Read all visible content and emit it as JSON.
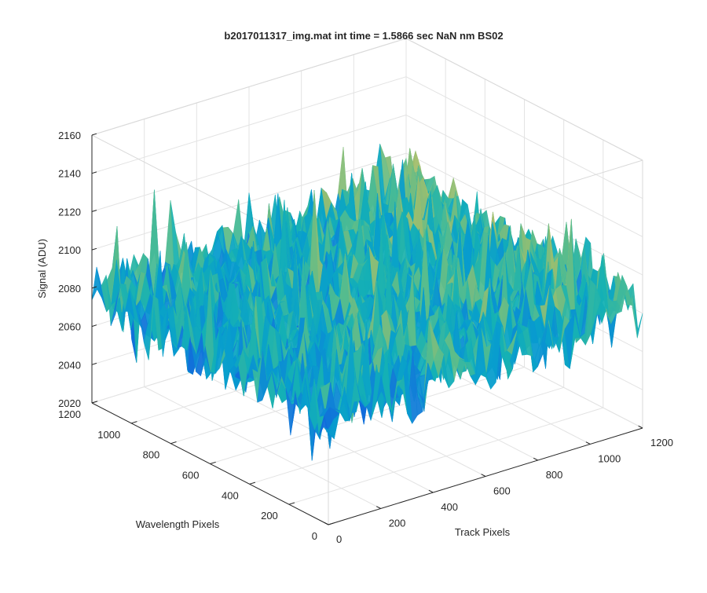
{
  "chart_data": {
    "type": "surface",
    "title": "b2017011317_img.mat int time = 1.5866 sec  NaN nm BS02",
    "xlabel": "Track Pixels",
    "ylabel": "Wavelength Pixels",
    "zlabel": "Signal (ADU)",
    "xlim": [
      0,
      1200
    ],
    "ylim": [
      0,
      1200
    ],
    "zlim": [
      2020,
      2160
    ],
    "x_ticks": [
      "0",
      "200",
      "400",
      "600",
      "800",
      "1000",
      "1200"
    ],
    "y_ticks": [
      "0",
      "200",
      "400",
      "600",
      "800",
      "1000",
      "1200"
    ],
    "z_ticks": [
      "2020",
      "2040",
      "2060",
      "2080",
      "2100",
      "2120",
      "2140",
      "2160"
    ],
    "grid": true,
    "box": true,
    "colormap": "parula",
    "surface": {
      "note_values_approx": true,
      "baseline_signal": 2080,
      "noise_amplitude": 30,
      "min_signal": 2025,
      "max_signal": 2160,
      "tilt_toward_high_x": 10
    }
  }
}
